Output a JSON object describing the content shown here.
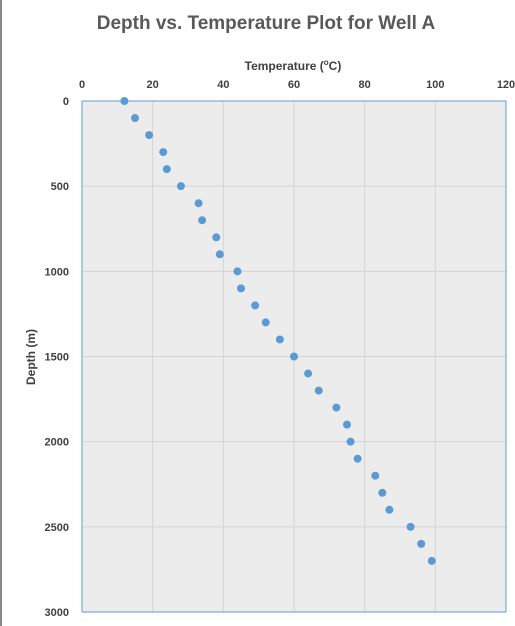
{
  "chart_data": {
    "type": "scatter",
    "title": "Depth vs. Temperature Plot for Well A",
    "xlabel": "Temperature (°C)",
    "xlabel_main": "Temperature (",
    "xlabel_sup": "o",
    "xlabel_end": "C)",
    "ylabel": "Depth (m)",
    "xlim": [
      0,
      120
    ],
    "ylim": [
      0,
      3000
    ],
    "y_inverted": true,
    "x_axis_position": "top",
    "grid": true,
    "x_ticks": [
      "0",
      "20",
      "40",
      "60",
      "80",
      "100",
      "120"
    ],
    "y_ticks": [
      "0",
      "500",
      "1000",
      "1500",
      "2000",
      "2500",
      "3000"
    ],
    "marker_color": "#5b9bd5",
    "plot_background": "#ececec",
    "series": [
      {
        "points": [
          [
            12,
            0
          ],
          [
            15,
            100
          ],
          [
            19,
            200
          ],
          [
            23,
            300
          ],
          [
            24,
            400
          ],
          [
            28,
            500
          ],
          [
            33,
            600
          ],
          [
            34,
            700
          ],
          [
            38,
            800
          ],
          [
            39,
            900
          ],
          [
            44,
            1000
          ],
          [
            45,
            1100
          ],
          [
            49,
            1200
          ],
          [
            52,
            1300
          ],
          [
            56,
            1400
          ],
          [
            60,
            1500
          ],
          [
            64,
            1600
          ],
          [
            67,
            1700
          ],
          [
            72,
            1800
          ],
          [
            75,
            1900
          ],
          [
            76,
            2000
          ],
          [
            78,
            2100
          ],
          [
            83,
            2200
          ],
          [
            85,
            2300
          ],
          [
            87,
            2400
          ],
          [
            93,
            2500
          ],
          [
            96,
            2600
          ],
          [
            99,
            2700
          ]
        ]
      }
    ]
  }
}
